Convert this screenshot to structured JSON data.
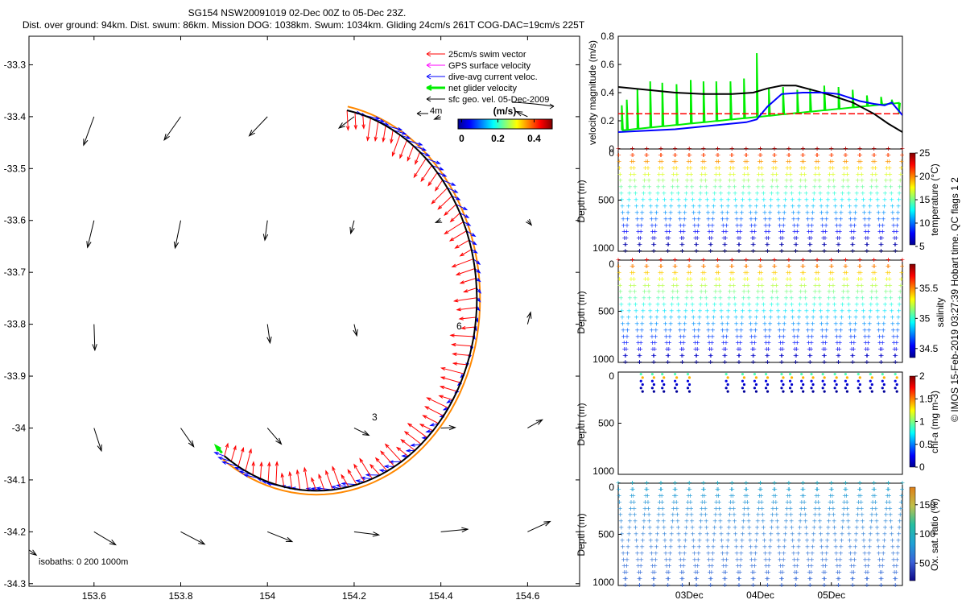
{
  "title_line1": "SG154 NSW20091019 02-Dec 00Z to 05-Dec 23Z.",
  "title_line2": "Dist. over ground: 94km. Dist. swum: 86km. Mission DOG: 1038km. Swum: 1034km. Gliding 24cm/s 261T COG-DAC=19cm/s 225T",
  "footer_credit": "© IMOS 15-Feb-2019 03:27:39 Hobart time. QC flags 1  2",
  "colors": {
    "swim": "#ff0000",
    "gps": "#ff00ff",
    "dac": "#0000ff",
    "net": "#00ee00",
    "geo": "#000000"
  },
  "chart_data": [
    {
      "type": "map",
      "xlim": [
        153.45,
        154.72
      ],
      "ylim": [
        -34.305,
        -33.245
      ],
      "xticks": [
        "153.6",
        "153.8",
        "154",
        "154.2",
        "154.4",
        "154.6"
      ],
      "xtick_values": [
        153.6,
        153.8,
        154.0,
        154.2,
        154.4,
        154.6
      ],
      "yticks": [
        "-33.3",
        "-33.4",
        "-33.5",
        "-33.6",
        "-33.7",
        "-33.8",
        "-33.9",
        "-34",
        "-34.1",
        "-34.2",
        "-34.3"
      ],
      "ytick_values": [
        -33.3,
        -33.4,
        -33.5,
        -33.6,
        -33.7,
        -33.8,
        -33.9,
        -34.0,
        -34.1,
        -34.2,
        -34.3
      ],
      "legend": [
        {
          "label": "25cm/s swim vector",
          "color_key": "swim"
        },
        {
          "label": "GPS surface velocity",
          "color_key": "gps"
        },
        {
          "label": "dive-avg current veloc.",
          "color_key": "dac"
        },
        {
          "label": "net glider velocity",
          "color_key": "net"
        },
        {
          "label": "sfc geo. vel. 05-Dec-2009",
          "color_key": "geo"
        }
      ],
      "scale_label": "4m",
      "colorbar": {
        "label": "(m/s)",
        "ticks": [
          "0",
          "0.2",
          "0.4"
        ],
        "tick_values": [
          0,
          0.2,
          0.4
        ],
        "range": [
          -0.02,
          0.5
        ]
      },
      "track_day_labels": [
        "3",
        "6"
      ],
      "isobath_text": "isobaths: 0   200   1000m",
      "track_arc": {
        "center": [
          154.113,
          -33.751
        ],
        "radius_deg": 0.37,
        "start_angle_deg": -125,
        "end_angle_deg": 79,
        "direction": "start=label 6, end=north-west tip"
      },
      "geo_vectors": [
        {
          "lon": 153.6,
          "lat": -33.4,
          "u": -0.24,
          "v": -0.55
        },
        {
          "lon": 153.8,
          "lat": -33.4,
          "u": -0.38,
          "v": -0.45
        },
        {
          "lon": 154.0,
          "lat": -33.4,
          "u": -0.42,
          "v": -0.37
        },
        {
          "lon": 154.2,
          "lat": -33.4,
          "u": -0.35,
          "v": -0.22
        },
        {
          "lon": 154.4,
          "lat": -33.4,
          "u": -0.15,
          "v": -0.05
        },
        {
          "lon": 154.6,
          "lat": -33.4,
          "u": -0.26,
          "v": 0.1
        },
        {
          "lon": 153.6,
          "lat": -33.6,
          "u": -0.15,
          "v": -0.52
        },
        {
          "lon": 153.8,
          "lat": -33.6,
          "u": -0.13,
          "v": -0.53
        },
        {
          "lon": 154.0,
          "lat": -33.6,
          "u": -0.06,
          "v": -0.38
        },
        {
          "lon": 154.2,
          "lat": -33.6,
          "u": -0.08,
          "v": -0.25
        },
        {
          "lon": 154.4,
          "lat": -33.6,
          "u": -0.12,
          "v": -0.04
        },
        {
          "lon": 154.6,
          "lat": -33.6,
          "u": 0.09,
          "v": -0.09
        },
        {
          "lon": 153.6,
          "lat": -33.8,
          "u": 0.02,
          "v": -0.5
        },
        {
          "lon": 154.0,
          "lat": -33.8,
          "u": 0.06,
          "v": -0.36
        },
        {
          "lon": 154.2,
          "lat": -33.8,
          "u": 0.06,
          "v": -0.22
        },
        {
          "lon": 154.6,
          "lat": -33.8,
          "u": 0.07,
          "v": 0.23
        },
        {
          "lon": 153.6,
          "lat": -34.0,
          "u": 0.17,
          "v": -0.44
        },
        {
          "lon": 153.8,
          "lat": -34.0,
          "u": 0.3,
          "v": -0.36
        },
        {
          "lon": 154.0,
          "lat": -34.0,
          "u": 0.32,
          "v": -0.31
        },
        {
          "lon": 154.2,
          "lat": -34.0,
          "u": 0.34,
          "v": -0.14
        },
        {
          "lon": 154.4,
          "lat": -34.0,
          "u": 0.33,
          "v": 0.01
        },
        {
          "lon": 154.6,
          "lat": -34.0,
          "u": 0.34,
          "v": 0.16
        },
        {
          "lon": 153.45,
          "lat": -34.235,
          "u": 0.17,
          "v": -0.1
        },
        {
          "lon": 153.6,
          "lat": -34.2,
          "u": 0.5,
          "v": -0.25
        },
        {
          "lon": 153.8,
          "lat": -34.2,
          "u": 0.55,
          "v": -0.24
        },
        {
          "lon": 154.0,
          "lat": -34.2,
          "u": 0.57,
          "v": -0.19
        },
        {
          "lon": 154.2,
          "lat": -34.2,
          "u": 0.57,
          "v": -0.06
        },
        {
          "lon": 154.4,
          "lat": -34.2,
          "u": 0.62,
          "v": 0.05
        },
        {
          "lon": 154.6,
          "lat": -34.2,
          "u": 0.52,
          "v": 0.2
        }
      ]
    },
    {
      "type": "line",
      "ylabel": "velocity magnitude (m/s)",
      "ylim": [
        0,
        0.8
      ],
      "yticks": [
        "0",
        "0.2",
        "0.4",
        "0.6",
        "0.8"
      ],
      "ytick_values": [
        0,
        0.2,
        0.4,
        0.6,
        0.8
      ],
      "xlim_days": [
        2.0,
        6.0
      ],
      "series": [
        {
          "name": "swim speed 25cm/s",
          "color_key": "swim",
          "style": "dashed",
          "days": [
            2.0,
            6.0
          ],
          "values": [
            0.25,
            0.25
          ]
        },
        {
          "name": "sfc geo. velocity",
          "color_key": "geo",
          "days": [
            2.0,
            2.4,
            2.8,
            3.2,
            3.6,
            3.9,
            4.1,
            4.3,
            4.5,
            4.8,
            5.0,
            5.3,
            5.6,
            5.8,
            6.0
          ],
          "values": [
            0.44,
            0.42,
            0.4,
            0.39,
            0.39,
            0.4,
            0.43,
            0.45,
            0.45,
            0.41,
            0.38,
            0.33,
            0.25,
            0.18,
            0.12
          ]
        },
        {
          "name": "dive-avg current",
          "color_key": "dac",
          "days": [
            2.0,
            2.4,
            2.8,
            3.2,
            3.6,
            3.8,
            3.95,
            4.1,
            4.3,
            4.6,
            4.9,
            5.1,
            5.4,
            5.6,
            5.75,
            5.85,
            6.0
          ],
          "values": [
            0.12,
            0.13,
            0.14,
            0.16,
            0.18,
            0.19,
            0.21,
            0.3,
            0.39,
            0.4,
            0.4,
            0.39,
            0.34,
            0.32,
            0.31,
            0.33,
            0.24
          ]
        },
        {
          "name": "net glider velocity",
          "color_key": "net",
          "days": [
            2.05,
            2.12,
            2.27,
            2.45,
            2.62,
            2.82,
            3.02,
            3.2,
            3.38,
            3.58,
            3.77,
            3.95,
            4.12,
            4.32,
            4.52,
            4.7,
            4.9,
            5.1,
            5.3,
            5.5,
            5.7,
            5.85,
            5.95
          ],
          "values": [
            0.31,
            0.35,
            0.43,
            0.48,
            0.47,
            0.46,
            0.49,
            0.48,
            0.48,
            0.48,
            0.5,
            0.68,
            0.43,
            0.44,
            0.42,
            0.43,
            0.45,
            0.44,
            0.42,
            0.38,
            0.37,
            0.35,
            0.25
          ]
        }
      ]
    },
    {
      "type": "heatmap",
      "ylabel": "Depth (m)",
      "cbar_label": "temperature (°C)",
      "ylim": [
        1000,
        0
      ],
      "yticks": [
        "0",
        "500",
        "1000"
      ],
      "cbar_range": [
        5,
        25
      ],
      "cbar_ticks": [
        "5",
        "10",
        "15",
        "20",
        "25"
      ],
      "surface_value": 24,
      "bottom_value": 5,
      "dive_starts_days": [
        2.0,
        2.2,
        2.4,
        2.6,
        2.8,
        3.0,
        3.2,
        3.4,
        3.6,
        3.8,
        4.0,
        4.2,
        4.4,
        4.6,
        4.8,
        5.0,
        5.2,
        5.4,
        5.6,
        5.8
      ],
      "max_depth": 1000
    },
    {
      "type": "heatmap",
      "ylabel": "Depth (m)",
      "cbar_label": "salinity",
      "ylim": [
        1000,
        0
      ],
      "yticks": [
        "0",
        "500",
        "1000"
      ],
      "cbar_range": [
        34.35,
        35.9
      ],
      "cbar_ticks": [
        "34.5",
        "35",
        "35.5"
      ],
      "surface_value": 35.7,
      "bottom_value": 34.4,
      "dive_starts_days": [
        2.0,
        2.2,
        2.4,
        2.6,
        2.8,
        3.0,
        3.2,
        3.4,
        3.6,
        3.8,
        4.0,
        4.2,
        4.4,
        4.6,
        4.8,
        5.0,
        5.2,
        5.4,
        5.6,
        5.8
      ],
      "max_depth": 1000
    },
    {
      "type": "scatter",
      "ylabel": "Depth (m)",
      "cbar_label": "chl-a (mg m-3)",
      "ylim": [
        1000,
        0
      ],
      "yticks": [
        "0",
        "500",
        "1000"
      ],
      "cbar_range": [
        0,
        2
      ],
      "cbar_ticks": [
        "0",
        "0.5",
        "1",
        "1.5",
        "2"
      ],
      "profile_days": [
        2.32,
        2.48,
        2.62,
        2.8,
        2.98,
        3.52,
        3.75,
        3.92,
        4.08,
        4.3,
        4.42,
        4.58,
        4.72,
        4.88,
        5.05,
        5.2,
        5.38,
        5.55,
        5.72,
        5.9
      ],
      "profile_depth_range": [
        20,
        190
      ]
    },
    {
      "type": "heatmap",
      "ylabel": "Depth (m)",
      "cbar_label": "Ox. sat. ratio (%)",
      "ylim": [
        1000,
        0
      ],
      "yticks": [
        "0",
        "500",
        "1000"
      ],
      "cbar_range": [
        20,
        180
      ],
      "cbar_ticks": [
        "50",
        "100",
        "150"
      ],
      "surface_value": 95,
      "bottom_value": 55,
      "dive_starts_days": [
        2.0,
        2.2,
        2.4,
        2.6,
        2.8,
        3.0,
        3.2,
        3.4,
        3.6,
        3.8,
        4.0,
        4.2,
        4.4,
        4.6,
        4.8,
        5.0,
        5.2,
        5.4,
        5.6,
        5.8
      ],
      "max_depth": 1000,
      "xticks": [
        "03Dec",
        "04Dec",
        "05Dec"
      ],
      "xtick_days": [
        3,
        4,
        5
      ]
    }
  ]
}
